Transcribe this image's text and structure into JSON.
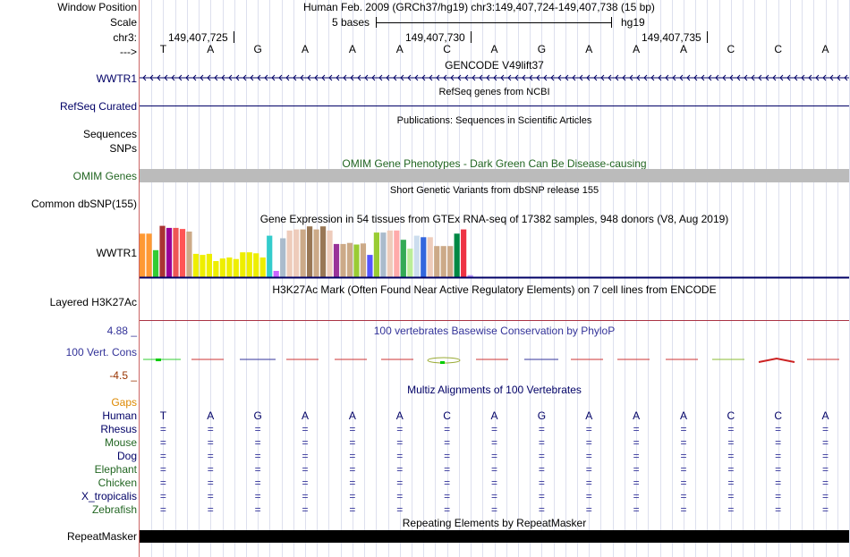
{
  "header": {
    "window_position_label": "Window Position",
    "window_position_value": "Human Feb. 2009 (GRCh37/hg19)   chr3:149,407,724-149,407,738 (15 bp)",
    "scale_label": "Scale",
    "scale_text": "5 bases",
    "scale_db": "hg19",
    "chrom_label": "chr3:",
    "coord_1": "149,407,725",
    "coord_2": "149,407,730",
    "coord_3": "149,407,735",
    "strand_label": "--->"
  },
  "bases": [
    "T",
    "A",
    "G",
    "A",
    "A",
    "A",
    "C",
    "A",
    "G",
    "A",
    "A",
    "A",
    "C",
    "C",
    "A"
  ],
  "tracks": {
    "gencode_title": "GENCODE V49lift37",
    "gencode_gene": "WWTR1",
    "refseq_title": "RefSeq genes from NCBI",
    "refseq_label": "RefSeq Curated",
    "pubs_title": "Publications: Sequences in Scientific Articles",
    "pubs_label": "Sequences",
    "snps_label": "SNPs",
    "omim_title": "OMIM Gene Phenotypes - Dark Green Can Be Disease-causing",
    "omim_label": "OMIM Genes",
    "dbsnp_title": "Short Genetic Variants from dbSNP release 155",
    "dbsnp_label": "Common dbSNP(155)",
    "gtex_title": "Gene Expression in 54 tissues from GTEx RNA-seq of 17382 samples, 948 donors (V8, Aug 2019)",
    "gtex_label": "WWTR1",
    "h3k27_title": "H3K27Ac Mark (Often Found Near Active Regulatory Elements) on 7 cell lines from ENCODE",
    "h3k27_label": "Layered H3K27Ac",
    "phylop_title": "100 vertebrates Basewise Conservation by PhyloP",
    "phylop_max": "4.88 _",
    "phylop_label": "100 Vert. Cons",
    "phylop_min": "-4.5 _",
    "multiz_title": "Multiz Alignments of 100 Vertebrates",
    "gaps_label": "Gaps",
    "rmsk_title": "Repeating Elements by RepeatMasker",
    "rmsk_label": "RepeatMasker"
  },
  "species": [
    {
      "name": "Human",
      "color": "#000066"
    },
    {
      "name": "Rhesus",
      "color": "#000066"
    },
    {
      "name": "Mouse",
      "color": "#226622"
    },
    {
      "name": "Dog",
      "color": "#000066"
    },
    {
      "name": "Elephant",
      "color": "#226622"
    },
    {
      "name": "Chicken",
      "color": "#226622"
    },
    {
      "name": "X_tropicalis",
      "color": "#000066"
    },
    {
      "name": "Zebrafish",
      "color": "#226622"
    }
  ],
  "gtex_bars": [
    {
      "color": "#FF9933",
      "value": 0.84
    },
    {
      "color": "#FF9933",
      "value": 0.84
    },
    {
      "color": "#33CC33",
      "value": 0.52
    },
    {
      "color": "#AA3333",
      "value": 0.99
    },
    {
      "color": "#990099",
      "value": 0.95
    },
    {
      "color": "#EE5555",
      "value": 0.95
    },
    {
      "color": "#FF5555",
      "value": 0.93
    },
    {
      "color": "#CCAA88",
      "value": 0.88
    },
    {
      "color": "#EEEE00",
      "value": 0.45
    },
    {
      "color": "#EEEE00",
      "value": 0.43
    },
    {
      "color": "#EEEE00",
      "value": 0.45
    },
    {
      "color": "#EEEE00",
      "value": 0.31
    },
    {
      "color": "#EEEE00",
      "value": 0.36
    },
    {
      "color": "#EEEE00",
      "value": 0.38
    },
    {
      "color": "#EEEE00",
      "value": 0.35
    },
    {
      "color": "#EEEE00",
      "value": 0.48
    },
    {
      "color": "#EEEE00",
      "value": 0.48
    },
    {
      "color": "#EEEE00",
      "value": 0.46
    },
    {
      "color": "#EEEE00",
      "value": 0.38
    },
    {
      "color": "#33CCCC",
      "value": 0.8
    },
    {
      "color": "#CC66FF",
      "value": 0.12
    },
    {
      "color": "#AABBCC",
      "value": 0.75
    },
    {
      "color": "#EECCBB",
      "value": 0.9
    },
    {
      "color": "#EECCBB",
      "value": 0.92
    },
    {
      "color": "#CCAA88",
      "value": 0.92
    },
    {
      "color": "#997755",
      "value": 0.98
    },
    {
      "color": "#CCAA88",
      "value": 0.92
    },
    {
      "color": "#997755",
      "value": 0.98
    },
    {
      "color": "#EECCBB",
      "value": 0.9
    },
    {
      "color": "#993399",
      "value": 0.64
    },
    {
      "color": "#CCAA88",
      "value": 0.64
    },
    {
      "color": "#CCAA88",
      "value": 0.66
    },
    {
      "color": "#99CC33",
      "value": 0.63
    },
    {
      "color": "#CCAA88",
      "value": 0.65
    },
    {
      "color": "#5555FF",
      "value": 0.43
    },
    {
      "color": "#99CC33",
      "value": 0.86
    },
    {
      "color": "#AABBCC",
      "value": 0.86
    },
    {
      "color": "#EECCBB",
      "value": 0.9
    },
    {
      "color": "#FFAAAA",
      "value": 0.9
    },
    {
      "color": "#33AA55",
      "value": 0.72
    },
    {
      "color": "#BBEE99",
      "value": 0.55
    },
    {
      "color": "#CCDDEE",
      "value": 0.8
    },
    {
      "color": "#3366DD",
      "value": 0.77
    },
    {
      "color": "#EECCBB",
      "value": 0.77
    },
    {
      "color": "#CCAA88",
      "value": 0.6
    },
    {
      "color": "#CCAA88",
      "value": 0.6
    },
    {
      "color": "#CCAA88",
      "value": 0.6
    },
    {
      "color": "#008844",
      "value": 0.84
    },
    {
      "color": "#EE3344",
      "value": 0.92
    },
    {
      "color": "#BB99FF",
      "value": 0.04
    }
  ],
  "colors": {
    "gene_navy": "#000066",
    "omim_green": "#226622",
    "omim_bar": "#BBBBBB",
    "grid_line": "#CCCCDD",
    "gaps_orange": "#DD8800",
    "phylop_blue": "#333399",
    "phylop_min_brown": "#993300",
    "h3k27_line": "#AA3344",
    "repeat_black": "#000000"
  }
}
